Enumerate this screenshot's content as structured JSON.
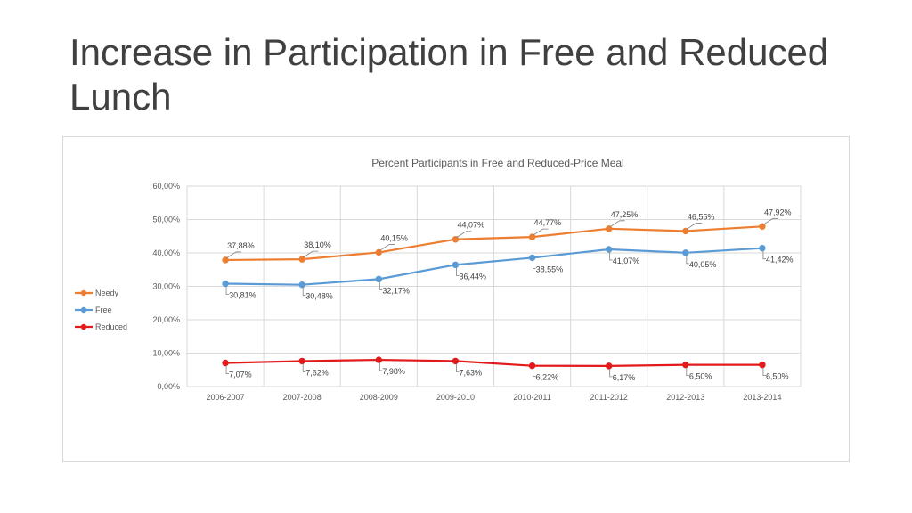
{
  "slide": {
    "title": "Increase in Participation in Free and Reduced Lunch"
  },
  "chart_data": {
    "type": "line",
    "title": "Percent Participants in Free and Reduced-Price Meal",
    "xlabel": "",
    "ylabel": "",
    "categories": [
      "2006-2007",
      "2007-2008",
      "2008-2009",
      "2009-2010",
      "2010-2011",
      "2011-2012",
      "2012-2013",
      "2013-2014"
    ],
    "ylim": [
      0,
      60
    ],
    "yticks": [
      0,
      10,
      20,
      30,
      40,
      50,
      60
    ],
    "ytick_labels": [
      "0,00%",
      "10,00%",
      "20,00%",
      "30,00%",
      "40,00%",
      "50,00%",
      "60,00%"
    ],
    "grid": {
      "horizontal": true,
      "vertical": true
    },
    "legend": {
      "position": "left"
    },
    "series": [
      {
        "name": "Needy",
        "color": "#ed7d31",
        "values": [
          37.88,
          38.1,
          40.15,
          44.07,
          44.77,
          47.25,
          46.55,
          47.92
        ],
        "labels": [
          "37,88%",
          "38,10%",
          "40,15%",
          "44,07%",
          "44,77%",
          "47,25%",
          "46,55%",
          "47,92%"
        ]
      },
      {
        "name": "Free",
        "color": "#5b9bd5",
        "values": [
          30.81,
          30.48,
          32.17,
          36.44,
          38.55,
          41.07,
          40.05,
          41.42
        ],
        "labels": [
          "30,81%",
          "30,48%",
          "32,17%",
          "36,44%",
          "38,55%",
          "41,07%",
          "40,05%",
          "41,42%"
        ]
      },
      {
        "name": "Reduced",
        "color": "#e31a1c",
        "values": [
          7.07,
          7.62,
          7.98,
          7.63,
          6.22,
          6.17,
          6.5,
          6.5
        ],
        "labels": [
          "7,07%",
          "7,62%",
          "7,98%",
          "7,63%",
          "6,22%",
          "6,17%",
          "6,50%",
          "6,50%"
        ]
      }
    ]
  }
}
